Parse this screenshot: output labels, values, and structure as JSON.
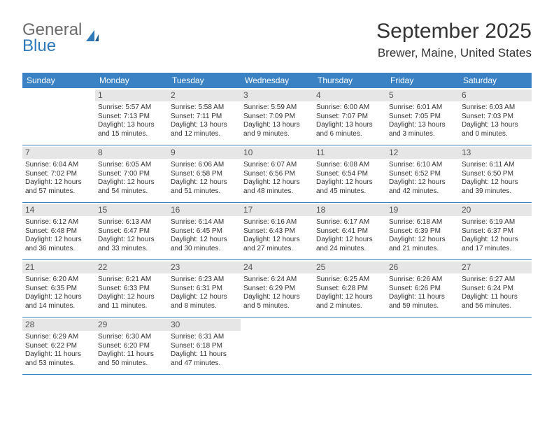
{
  "brand": {
    "word1": "General",
    "word2": "Blue"
  },
  "header": {
    "title": "September 2025",
    "location": "Brewer, Maine, United States"
  },
  "colors": {
    "header_bg": "#3a82c4",
    "header_text": "#ffffff",
    "daynum_bg": "#e6e6e6",
    "border": "#3a82c4",
    "text": "#333333",
    "brand_gray": "#6b6b6b",
    "brand_blue": "#2f79b9",
    "background": "#ffffff"
  },
  "typography": {
    "title_fontsize": 30,
    "location_fontsize": 17,
    "weekday_fontsize": 12,
    "daynum_fontsize": 12,
    "body_fontsize": 10
  },
  "weekdays": [
    "Sunday",
    "Monday",
    "Tuesday",
    "Wednesday",
    "Thursday",
    "Friday",
    "Saturday"
  ],
  "weeks": [
    [
      {
        "num": "",
        "lines": []
      },
      {
        "num": "1",
        "lines": [
          "Sunrise: 5:57 AM",
          "Sunset: 7:13 PM",
          "Daylight: 13 hours",
          "and 15 minutes."
        ]
      },
      {
        "num": "2",
        "lines": [
          "Sunrise: 5:58 AM",
          "Sunset: 7:11 PM",
          "Daylight: 13 hours",
          "and 12 minutes."
        ]
      },
      {
        "num": "3",
        "lines": [
          "Sunrise: 5:59 AM",
          "Sunset: 7:09 PM",
          "Daylight: 13 hours",
          "and 9 minutes."
        ]
      },
      {
        "num": "4",
        "lines": [
          "Sunrise: 6:00 AM",
          "Sunset: 7:07 PM",
          "Daylight: 13 hours",
          "and 6 minutes."
        ]
      },
      {
        "num": "5",
        "lines": [
          "Sunrise: 6:01 AM",
          "Sunset: 7:05 PM",
          "Daylight: 13 hours",
          "and 3 minutes."
        ]
      },
      {
        "num": "6",
        "lines": [
          "Sunrise: 6:03 AM",
          "Sunset: 7:03 PM",
          "Daylight: 13 hours",
          "and 0 minutes."
        ]
      }
    ],
    [
      {
        "num": "7",
        "lines": [
          "Sunrise: 6:04 AM",
          "Sunset: 7:02 PM",
          "Daylight: 12 hours",
          "and 57 minutes."
        ]
      },
      {
        "num": "8",
        "lines": [
          "Sunrise: 6:05 AM",
          "Sunset: 7:00 PM",
          "Daylight: 12 hours",
          "and 54 minutes."
        ]
      },
      {
        "num": "9",
        "lines": [
          "Sunrise: 6:06 AM",
          "Sunset: 6:58 PM",
          "Daylight: 12 hours",
          "and 51 minutes."
        ]
      },
      {
        "num": "10",
        "lines": [
          "Sunrise: 6:07 AM",
          "Sunset: 6:56 PM",
          "Daylight: 12 hours",
          "and 48 minutes."
        ]
      },
      {
        "num": "11",
        "lines": [
          "Sunrise: 6:08 AM",
          "Sunset: 6:54 PM",
          "Daylight: 12 hours",
          "and 45 minutes."
        ]
      },
      {
        "num": "12",
        "lines": [
          "Sunrise: 6:10 AM",
          "Sunset: 6:52 PM",
          "Daylight: 12 hours",
          "and 42 minutes."
        ]
      },
      {
        "num": "13",
        "lines": [
          "Sunrise: 6:11 AM",
          "Sunset: 6:50 PM",
          "Daylight: 12 hours",
          "and 39 minutes."
        ]
      }
    ],
    [
      {
        "num": "14",
        "lines": [
          "Sunrise: 6:12 AM",
          "Sunset: 6:48 PM",
          "Daylight: 12 hours",
          "and 36 minutes."
        ]
      },
      {
        "num": "15",
        "lines": [
          "Sunrise: 6:13 AM",
          "Sunset: 6:47 PM",
          "Daylight: 12 hours",
          "and 33 minutes."
        ]
      },
      {
        "num": "16",
        "lines": [
          "Sunrise: 6:14 AM",
          "Sunset: 6:45 PM",
          "Daylight: 12 hours",
          "and 30 minutes."
        ]
      },
      {
        "num": "17",
        "lines": [
          "Sunrise: 6:16 AM",
          "Sunset: 6:43 PM",
          "Daylight: 12 hours",
          "and 27 minutes."
        ]
      },
      {
        "num": "18",
        "lines": [
          "Sunrise: 6:17 AM",
          "Sunset: 6:41 PM",
          "Daylight: 12 hours",
          "and 24 minutes."
        ]
      },
      {
        "num": "19",
        "lines": [
          "Sunrise: 6:18 AM",
          "Sunset: 6:39 PM",
          "Daylight: 12 hours",
          "and 21 minutes."
        ]
      },
      {
        "num": "20",
        "lines": [
          "Sunrise: 6:19 AM",
          "Sunset: 6:37 PM",
          "Daylight: 12 hours",
          "and 17 minutes."
        ]
      }
    ],
    [
      {
        "num": "21",
        "lines": [
          "Sunrise: 6:20 AM",
          "Sunset: 6:35 PM",
          "Daylight: 12 hours",
          "and 14 minutes."
        ]
      },
      {
        "num": "22",
        "lines": [
          "Sunrise: 6:21 AM",
          "Sunset: 6:33 PM",
          "Daylight: 12 hours",
          "and 11 minutes."
        ]
      },
      {
        "num": "23",
        "lines": [
          "Sunrise: 6:23 AM",
          "Sunset: 6:31 PM",
          "Daylight: 12 hours",
          "and 8 minutes."
        ]
      },
      {
        "num": "24",
        "lines": [
          "Sunrise: 6:24 AM",
          "Sunset: 6:29 PM",
          "Daylight: 12 hours",
          "and 5 minutes."
        ]
      },
      {
        "num": "25",
        "lines": [
          "Sunrise: 6:25 AM",
          "Sunset: 6:28 PM",
          "Daylight: 12 hours",
          "and 2 minutes."
        ]
      },
      {
        "num": "26",
        "lines": [
          "Sunrise: 6:26 AM",
          "Sunset: 6:26 PM",
          "Daylight: 11 hours",
          "and 59 minutes."
        ]
      },
      {
        "num": "27",
        "lines": [
          "Sunrise: 6:27 AM",
          "Sunset: 6:24 PM",
          "Daylight: 11 hours",
          "and 56 minutes."
        ]
      }
    ],
    [
      {
        "num": "28",
        "lines": [
          "Sunrise: 6:29 AM",
          "Sunset: 6:22 PM",
          "Daylight: 11 hours",
          "and 53 minutes."
        ]
      },
      {
        "num": "29",
        "lines": [
          "Sunrise: 6:30 AM",
          "Sunset: 6:20 PM",
          "Daylight: 11 hours",
          "and 50 minutes."
        ]
      },
      {
        "num": "30",
        "lines": [
          "Sunrise: 6:31 AM",
          "Sunset: 6:18 PM",
          "Daylight: 11 hours",
          "and 47 minutes."
        ]
      },
      {
        "num": "",
        "lines": []
      },
      {
        "num": "",
        "lines": []
      },
      {
        "num": "",
        "lines": []
      },
      {
        "num": "",
        "lines": []
      }
    ]
  ]
}
